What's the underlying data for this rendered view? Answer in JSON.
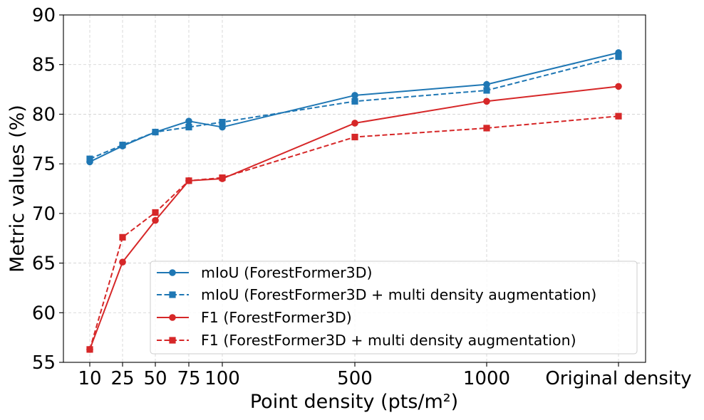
{
  "chart_data": {
    "type": "line",
    "xlabel": "Point density (pts/m²)",
    "ylabel": "Metric values (%)",
    "categories": [
      "10",
      "25",
      "50",
      "75",
      "100",
      "500",
      "1000",
      "Original density"
    ],
    "x": [
      10,
      25,
      50,
      75,
      100,
      500,
      1000,
      1500
    ],
    "ylim": [
      55,
      90
    ],
    "yticks": [
      55,
      60,
      65,
      70,
      75,
      80,
      85,
      90
    ],
    "grid": true,
    "legend_position": "lower-right",
    "colors": {
      "blue": "#1f77b4",
      "red": "#d62728"
    },
    "series": [
      {
        "name": "mIoU (ForestFormer3D)",
        "color": "#1f77b4",
        "line": "solid",
        "marker": "circle",
        "values": [
          75.2,
          76.8,
          78.2,
          79.3,
          78.7,
          81.9,
          83.0,
          86.2
        ]
      },
      {
        "name": "mIoU (ForestFormer3D + multi density augmentation)",
        "color": "#1f77b4",
        "line": "dashed",
        "marker": "square",
        "values": [
          75.5,
          76.9,
          78.2,
          78.7,
          79.2,
          81.3,
          82.4,
          85.8
        ]
      },
      {
        "name": "F1 (ForestFormer3D)",
        "color": "#d62728",
        "line": "solid",
        "marker": "circle",
        "values": [
          56.3,
          65.1,
          69.3,
          73.3,
          73.5,
          79.1,
          81.3,
          82.8
        ]
      },
      {
        "name": "F1 (ForestFormer3D + multi density augmentation)",
        "color": "#d62728",
        "line": "dashed",
        "marker": "square",
        "values": [
          56.3,
          67.6,
          70.1,
          73.3,
          73.6,
          77.7,
          78.6,
          79.8
        ]
      }
    ]
  }
}
